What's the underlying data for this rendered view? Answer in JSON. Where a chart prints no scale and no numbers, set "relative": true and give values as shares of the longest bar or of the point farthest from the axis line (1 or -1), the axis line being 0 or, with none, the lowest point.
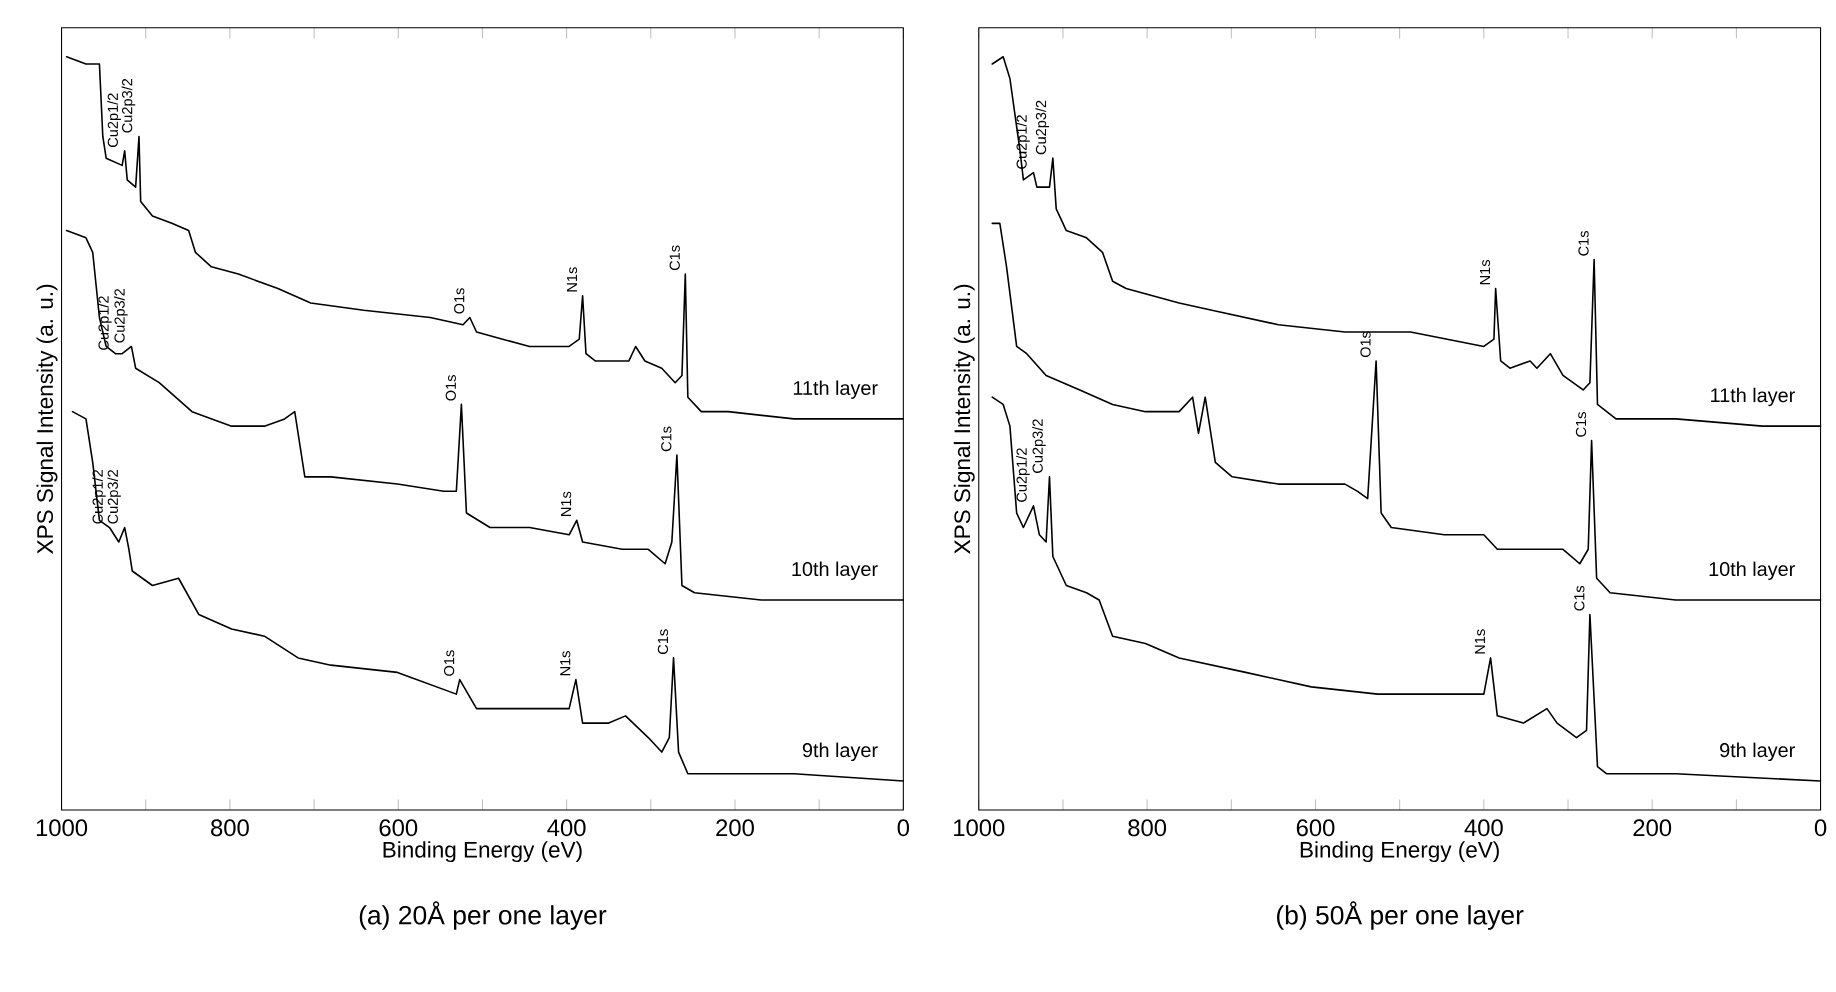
{
  "chart_data": [
    {
      "type": "line",
      "title": "(a)  20Å per one layer",
      "xlabel": "Binding Energy (eV)",
      "ylabel": "XPS Signal Intensity (a. u.)",
      "relative": true,
      "xlim": [
        1000,
        0
      ],
      "xticks": [
        1000,
        {
          "value": 900,
          "label": null
        },
        800,
        {
          "value": 700,
          "label": null
        },
        600,
        {
          "value": 500,
          "label": null
        },
        400,
        {
          "value": 300,
          "label": null
        },
        200,
        {
          "value": 100,
          "label": null
        },
        0
      ],
      "series": [
        {
          "name": "11th layer",
          "color": "#000000",
          "x": [
            994,
            971,
            955,
            951,
            947,
            928,
            925,
            922,
            912,
            908,
            906,
            892,
            869,
            849,
            841,
            822,
            790,
            743,
            704,
            641,
            562,
            523,
            515,
            507,
            476,
            444,
            397,
            385,
            381,
            377,
            366,
            326,
            318,
            307,
            287,
            271,
            263,
            259,
            256,
            240,
            208,
            130,
            0
          ],
          "values": [
            1.0,
            0.99,
            0.99,
            0.89,
            0.86,
            0.85,
            0.87,
            0.83,
            0.82,
            0.89,
            0.8,
            0.78,
            0.77,
            0.76,
            0.73,
            0.71,
            0.7,
            0.68,
            0.66,
            0.65,
            0.64,
            0.63,
            0.64,
            0.62,
            0.61,
            0.6,
            0.6,
            0.61,
            0.67,
            0.59,
            0.58,
            0.58,
            0.6,
            0.58,
            0.57,
            0.55,
            0.56,
            0.7,
            0.53,
            0.51,
            0.51,
            0.5,
            0.5
          ]
        },
        {
          "name": "10th layer",
          "color": "#000000",
          "x": [
            994,
            971,
            963,
            955,
            947,
            936,
            928,
            917,
            912,
            884,
            845,
            798,
            759,
            735,
            723,
            711,
            680,
            601,
            546,
            531,
            525,
            519,
            491,
            444,
            397,
            388,
            381,
            334,
            303,
            283,
            275,
            269,
            263,
            248,
            169,
            0
          ],
          "values": [
            0.76,
            0.75,
            0.73,
            0.64,
            0.6,
            0.59,
            0.59,
            0.6,
            0.57,
            0.55,
            0.51,
            0.49,
            0.49,
            0.5,
            0.51,
            0.42,
            0.42,
            0.41,
            0.4,
            0.4,
            0.52,
            0.37,
            0.35,
            0.35,
            0.34,
            0.36,
            0.33,
            0.32,
            0.32,
            0.3,
            0.33,
            0.45,
            0.27,
            0.26,
            0.25,
            0.25
          ]
        },
        {
          "name": "9th layer",
          "color": "#000000",
          "x": [
            987,
            971,
            963,
            955,
            943,
            932,
            925,
            920,
            916,
            892,
            861,
            837,
            798,
            759,
            719,
            680,
            601,
            531,
            527,
            507,
            444,
            397,
            389,
            381,
            350,
            330,
            303,
            287,
            278,
            273,
            267,
            256,
            208,
            130,
            0
          ],
          "values": [
            0.51,
            0.5,
            0.44,
            0.36,
            0.35,
            0.33,
            0.35,
            0.32,
            0.29,
            0.27,
            0.28,
            0.23,
            0.21,
            0.2,
            0.17,
            0.16,
            0.15,
            0.12,
            0.14,
            0.1,
            0.1,
            0.1,
            0.14,
            0.08,
            0.08,
            0.09,
            0.06,
            0.04,
            0.06,
            0.17,
            0.04,
            0.01,
            0.01,
            0.01,
            0.0
          ]
        }
      ],
      "annotations": [
        {
          "text": "Cu2p1/2",
          "x": 925,
          "y": 0.87
        },
        {
          "text": "Cu2p3/2",
          "x": 908,
          "y": 0.89
        },
        {
          "text": "O1s",
          "x": 515,
          "y": 0.64
        },
        {
          "text": "N1s",
          "x": 381,
          "y": 0.67
        },
        {
          "text": "C1s",
          "x": 259,
          "y": 0.7
        },
        {
          "text": "Cu2p1/2",
          "x": 936,
          "y": 0.59
        },
        {
          "text": "Cu2p3/2",
          "x": 917,
          "y": 0.6
        },
        {
          "text": "O1s",
          "x": 525,
          "y": 0.52
        },
        {
          "text": "N1s",
          "x": 388,
          "y": 0.36
        },
        {
          "text": "C1s",
          "x": 269,
          "y": 0.45
        },
        {
          "text": "Cu2p1/2",
          "x": 943,
          "y": 0.35
        },
        {
          "text": "Cu2p3/2",
          "x": 925,
          "y": 0.35
        },
        {
          "text": "O1s",
          "x": 527,
          "y": 0.14
        },
        {
          "text": "N1s",
          "x": 389,
          "y": 0.14
        },
        {
          "text": "C1s",
          "x": 273,
          "y": 0.17
        }
      ]
    },
    {
      "type": "line",
      "title": "(b)  50Å per one layer",
      "xlabel": "Binding Energy (eV)",
      "ylabel": "XPS Signal Intensity (a. u.)",
      "relative": true,
      "xlim": [
        1000,
        0
      ],
      "xticks": [
        1000,
        {
          "value": 900,
          "label": null
        },
        800,
        {
          "value": 700,
          "label": null
        },
        600,
        {
          "value": 500,
          "label": null
        },
        400,
        {
          "value": 300,
          "label": null
        },
        200,
        {
          "value": 100,
          "label": null
        },
        0
      ],
      "series": [
        {
          "name": "11th layer",
          "color": "#000000",
          "x": [
            984,
            971,
            963,
            951,
            947,
            935,
            931,
            916,
            912,
            908,
            896,
            872,
            853,
            841,
            825,
            762,
            723,
            644,
            565,
            487,
            400,
            388,
            386,
            380,
            369,
            345,
            337,
            321,
            306,
            282,
            274,
            269,
            265,
            243,
            172,
            69,
            0
          ],
          "values": [
            0.99,
            1.0,
            0.97,
            0.87,
            0.83,
            0.84,
            0.82,
            0.82,
            0.86,
            0.79,
            0.76,
            0.75,
            0.73,
            0.69,
            0.68,
            0.66,
            0.65,
            0.63,
            0.62,
            0.62,
            0.6,
            0.61,
            0.68,
            0.58,
            0.57,
            0.58,
            0.57,
            0.59,
            0.56,
            0.54,
            0.55,
            0.72,
            0.52,
            0.5,
            0.5,
            0.49,
            0.49
          ]
        },
        {
          "name": "10th layer",
          "color": "#000000",
          "x": [
            984,
            975,
            967,
            955,
            943,
            920,
            880,
            841,
            802,
            762,
            746,
            739,
            731,
            719,
            699,
            644,
            565,
            550,
            538,
            528,
            522,
            510,
            447,
            400,
            384,
            329,
            306,
            286,
            276,
            272,
            266,
            250,
            172,
            0
          ],
          "values": [
            0.77,
            0.77,
            0.71,
            0.6,
            0.59,
            0.56,
            0.54,
            0.52,
            0.51,
            0.51,
            0.53,
            0.48,
            0.53,
            0.44,
            0.42,
            0.41,
            0.41,
            0.4,
            0.39,
            0.58,
            0.37,
            0.35,
            0.34,
            0.34,
            0.32,
            0.32,
            0.32,
            0.3,
            0.32,
            0.47,
            0.28,
            0.26,
            0.25,
            0.25
          ]
        },
        {
          "name": "9th layer",
          "color": "#000000",
          "x": [
            984,
            971,
            963,
            955,
            947,
            935,
            928,
            920,
            916,
            912,
            896,
            872,
            857,
            841,
            802,
            762,
            683,
            605,
            526,
            447,
            400,
            392,
            384,
            353,
            325,
            313,
            290,
            278,
            274,
            265,
            254,
            172,
            0
          ],
          "values": [
            0.53,
            0.52,
            0.49,
            0.37,
            0.35,
            0.38,
            0.34,
            0.33,
            0.42,
            0.31,
            0.27,
            0.26,
            0.25,
            0.2,
            0.19,
            0.17,
            0.15,
            0.13,
            0.12,
            0.12,
            0.12,
            0.17,
            0.09,
            0.08,
            0.1,
            0.08,
            0.06,
            0.07,
            0.23,
            0.02,
            0.01,
            0.01,
            0.0
          ]
        }
      ],
      "annotations": [
        {
          "text": "Cu2p1/2",
          "x": 935,
          "y": 0.84
        },
        {
          "text": "Cu2p3/2",
          "x": 912,
          "y": 0.86
        },
        {
          "text": "N1s",
          "x": 386,
          "y": 0.68
        },
        {
          "text": "C1s",
          "x": 269,
          "y": 0.72
        },
        {
          "text": "O1s",
          "x": 528,
          "y": 0.58
        },
        {
          "text": "C1s",
          "x": 272,
          "y": 0.47
        },
        {
          "text": "Cu2p1/2",
          "x": 935,
          "y": 0.38
        },
        {
          "text": "Cu2p3/2",
          "x": 916,
          "y": 0.42
        },
        {
          "text": "N1s",
          "x": 392,
          "y": 0.17
        },
        {
          "text": "C1s",
          "x": 274,
          "y": 0.23
        }
      ]
    }
  ]
}
